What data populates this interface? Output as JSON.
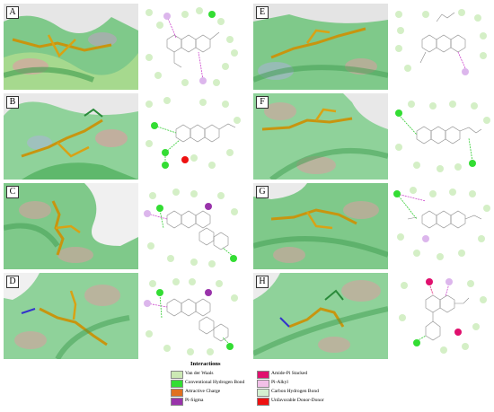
{
  "panels": [
    {
      "label": "A"
    },
    {
      "label": "B"
    },
    {
      "label": "C"
    },
    {
      "label": "D"
    },
    {
      "label": "E"
    },
    {
      "label": "F"
    },
    {
      "label": "G"
    },
    {
      "label": "H"
    }
  ],
  "legend": {
    "title": "Interactions",
    "items": [
      {
        "label": "Van der Waals",
        "color": "#cce9b4"
      },
      {
        "label": "Conventional Hydrogen Bond",
        "color": "#33dd33"
      },
      {
        "label": "Attractive Charge",
        "color": "#e07020"
      },
      {
        "label": "Pi-Sigma",
        "color": "#9933aa"
      },
      {
        "label": "Amide-Pi Stacked",
        "color": "#e0106e"
      },
      {
        "label": "Pi-Alkyl",
        "color": "#f2c0e8"
      },
      {
        "label": "Carbon Hydrogen Bond",
        "color": "#d4f0d0"
      },
      {
        "label": "Unfavorable Donor-Donor",
        "color": "#ee1111"
      }
    ]
  }
}
